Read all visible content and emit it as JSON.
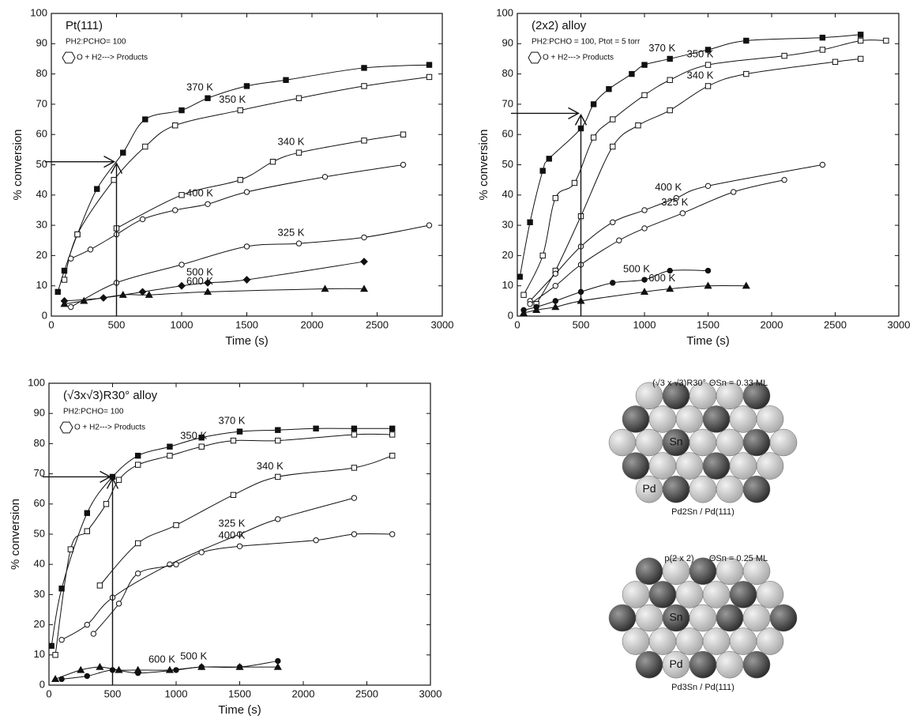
{
  "chart_data": [
    {
      "type": "scatter",
      "title": "Pt(111)",
      "conditions": "PH2:PCHO= 100",
      "reaction": "O + H2---> Products",
      "x_label": "Time (s)",
      "y_label": "% conversion",
      "xlim": [
        0,
        3000
      ],
      "ylim": [
        0,
        100
      ],
      "xticks": [
        0,
        500,
        1000,
        1500,
        2000,
        2500,
        3000
      ],
      "yticks": [
        0,
        10,
        20,
        30,
        40,
        50,
        60,
        70,
        80,
        90,
        100
      ],
      "arrow": {
        "x": 500,
        "y": 51
      },
      "series": [
        {
          "name": "370 K",
          "color": "#111111",
          "marker": "filled-square",
          "x": [
            50,
            100,
            200,
            350,
            550,
            720,
            1000,
            1200,
            1500,
            1800,
            2400,
            2900
          ],
          "values": [
            8,
            15,
            27,
            42,
            54,
            65,
            68,
            72,
            76,
            78,
            82,
            83
          ]
        },
        {
          "name": "350 K",
          "color": "#111111",
          "marker": "open-square",
          "x": [
            100,
            200,
            480,
            720,
            950,
            1450,
            1900,
            2400,
            2900
          ],
          "values": [
            12,
            27,
            45,
            56,
            63,
            68,
            72,
            76,
            79
          ]
        },
        {
          "name": "340 K",
          "color": "#111111",
          "marker": "open-square",
          "x": [
            500,
            1000,
            1450,
            1700,
            1900,
            2400,
            2700
          ],
          "values": [
            29,
            40,
            45,
            51,
            54,
            58,
            60
          ]
        },
        {
          "name": "400 K",
          "color": "#111111",
          "marker": "open-circle",
          "x": [
            150,
            300,
            500,
            700,
            950,
            1200,
            1500,
            2100,
            2700
          ],
          "values": [
            19,
            22,
            27,
            32,
            35,
            37,
            41,
            46,
            50
          ]
        },
        {
          "name": "325 K",
          "color": "#111111",
          "marker": "open-circle",
          "x": [
            150,
            500,
            1000,
            1500,
            1900,
            2400,
            2900
          ],
          "values": [
            3,
            11,
            17,
            23,
            24,
            26,
            30
          ]
        },
        {
          "name": "500 K",
          "color": "#111111",
          "marker": "filled-diamond",
          "x": [
            100,
            400,
            700,
            1000,
            1200,
            1500,
            2400
          ],
          "values": [
            5,
            6,
            8,
            10,
            11,
            12,
            18
          ]
        },
        {
          "name": "600 K",
          "color": "#111111",
          "marker": "filled-triangle",
          "x": [
            100,
            250,
            550,
            750,
            1200,
            2100,
            2400
          ],
          "values": [
            4,
            5,
            7,
            7,
            8,
            9,
            9
          ]
        }
      ]
    },
    {
      "type": "scatter",
      "title": "(2x2) alloy",
      "conditions": "PH2:PCHO = 100, Ptot = 5 torr",
      "reaction": "O + H2---> Products",
      "x_label": "Time (s)",
      "y_label": "% conversion",
      "xlim": [
        0,
        3000
      ],
      "ylim": [
        0,
        100
      ],
      "xticks": [
        0,
        500,
        1000,
        1500,
        2000,
        2500,
        3000
      ],
      "yticks": [
        0,
        10,
        20,
        30,
        40,
        50,
        60,
        70,
        80,
        90,
        100
      ],
      "arrow": {
        "x": 500,
        "y": 67
      },
      "series": [
        {
          "name": "370 K",
          "color": "#111111",
          "marker": "filled-square",
          "x": [
            20,
            100,
            200,
            250,
            500,
            600,
            720,
            900,
            1000,
            1200,
            1500,
            1800,
            2400,
            2700
          ],
          "values": [
            13,
            31,
            48,
            52,
            62,
            70,
            75,
            80,
            83,
            85,
            88,
            91,
            92,
            93
          ]
        },
        {
          "name": "350 K",
          "color": "#111111",
          "marker": "open-square",
          "x": [
            50,
            200,
            300,
            450,
            600,
            750,
            1000,
            1200,
            1500,
            2100,
            2400,
            2700,
            2900
          ],
          "values": [
            7,
            20,
            39,
            44,
            59,
            65,
            73,
            78,
            83,
            86,
            88,
            91,
            91
          ]
        },
        {
          "name": "340 K",
          "color": "#111111",
          "marker": "open-square",
          "x": [
            150,
            300,
            500,
            750,
            950,
            1200,
            1500,
            1800,
            2500,
            2700
          ],
          "values": [
            4,
            15,
            33,
            56,
            63,
            68,
            76,
            80,
            84,
            85
          ]
        },
        {
          "name": "400 K",
          "color": "#111111",
          "marker": "open-circle",
          "x": [
            100,
            300,
            500,
            750,
            1000,
            1250,
            1500,
            2400
          ],
          "values": [
            5,
            14,
            23,
            31,
            35,
            39,
            43,
            50
          ]
        },
        {
          "name": "325 K",
          "color": "#111111",
          "marker": "open-circle",
          "x": [
            100,
            300,
            500,
            800,
            1000,
            1300,
            1700,
            2100
          ],
          "values": [
            4,
            10,
            17,
            25,
            29,
            34,
            41,
            45
          ]
        },
        {
          "name": "500 K",
          "color": "#111111",
          "marker": "filled-circle",
          "x": [
            50,
            150,
            300,
            500,
            750,
            1000,
            1200,
            1500
          ],
          "values": [
            2,
            3,
            5,
            8,
            11,
            12,
            15,
            15
          ]
        },
        {
          "name": "600 K",
          "color": "#111111",
          "marker": "filled-triangle",
          "x": [
            50,
            150,
            300,
            500,
            1000,
            1200,
            1500,
            1800
          ],
          "values": [
            1,
            2,
            3,
            5,
            8,
            9,
            10,
            10
          ]
        }
      ]
    },
    {
      "type": "scatter",
      "title": "(√3x√3)R30° alloy",
      "conditions": "PH2:PCHO= 100",
      "reaction": "O + H2---> Products",
      "x_label": "Time (s)",
      "y_label": "% conversion",
      "xlim": [
        0,
        3000
      ],
      "ylim": [
        0,
        100
      ],
      "xticks": [
        0,
        500,
        1000,
        1500,
        2000,
        2500,
        3000
      ],
      "yticks": [
        0,
        10,
        20,
        30,
        40,
        50,
        60,
        70,
        80,
        90,
        100
      ],
      "arrow": {
        "x": 500,
        "y": 69
      },
      "series": [
        {
          "name": "370 K",
          "color": "#111111",
          "marker": "filled-square",
          "x": [
            20,
            100,
            300,
            500,
            700,
            950,
            1200,
            1500,
            1800,
            2100,
            2400,
            2700
          ],
          "values": [
            13,
            32,
            57,
            69,
            76,
            79,
            82,
            84,
            84.5,
            85,
            85,
            85
          ]
        },
        {
          "name": "350 K",
          "color": "#111111",
          "marker": "open-square",
          "x": [
            50,
            170,
            300,
            450,
            550,
            700,
            950,
            1200,
            1450,
            1800,
            2400,
            2700
          ],
          "values": [
            10,
            45,
            51,
            60,
            68,
            73,
            76,
            79,
            81,
            81,
            83,
            83
          ]
        },
        {
          "name": "340 K",
          "color": "#111111",
          "marker": "open-square",
          "x": [
            400,
            700,
            1000,
            1450,
            1800,
            2400,
            2700
          ],
          "values": [
            33,
            47,
            53,
            63,
            69,
            72,
            76
          ]
        },
        {
          "name": "325 K",
          "color": "#111111",
          "marker": "open-circle",
          "x": [
            100,
            300,
            500,
            950,
            1500,
            1800,
            2400
          ],
          "values": [
            15,
            20,
            29,
            40,
            50,
            55,
            62
          ]
        },
        {
          "name": "400 K",
          "color": "#111111",
          "marker": "open-circle",
          "x": [
            350,
            550,
            700,
            1000,
            1200,
            1500,
            2100,
            2400,
            2700
          ],
          "values": [
            17,
            27,
            37,
            40,
            44,
            46,
            48,
            50,
            50
          ]
        },
        {
          "name": "500 K",
          "color": "#111111",
          "marker": "filled-circle",
          "x": [
            100,
            300,
            500,
            700,
            1000,
            1200,
            1500,
            1800
          ],
          "values": [
            2,
            3,
            5,
            4,
            5,
            6,
            6,
            8
          ]
        },
        {
          "name": "600 K",
          "color": "#111111",
          "marker": "filled-triangle",
          "x": [
            50,
            250,
            400,
            550,
            700,
            950,
            1200,
            1500,
            1800
          ],
          "values": [
            2,
            5,
            6,
            5,
            5,
            5,
            6,
            6,
            6
          ]
        }
      ]
    }
  ],
  "diagrams": [
    {
      "title": "(√3 x √3)R30°",
      "coverage": "ΘSn = 0.33 ML",
      "sn_label": "Sn",
      "pd_label": "Pd",
      "caption": "Pd2Sn / Pd(111)"
    },
    {
      "title": "p(2 x 2)",
      "coverage": "ΘSn = 0.25 ML",
      "sn_label": "Sn",
      "pd_label": "Pd",
      "caption": "Pd3Sn / Pd(111)"
    }
  ]
}
